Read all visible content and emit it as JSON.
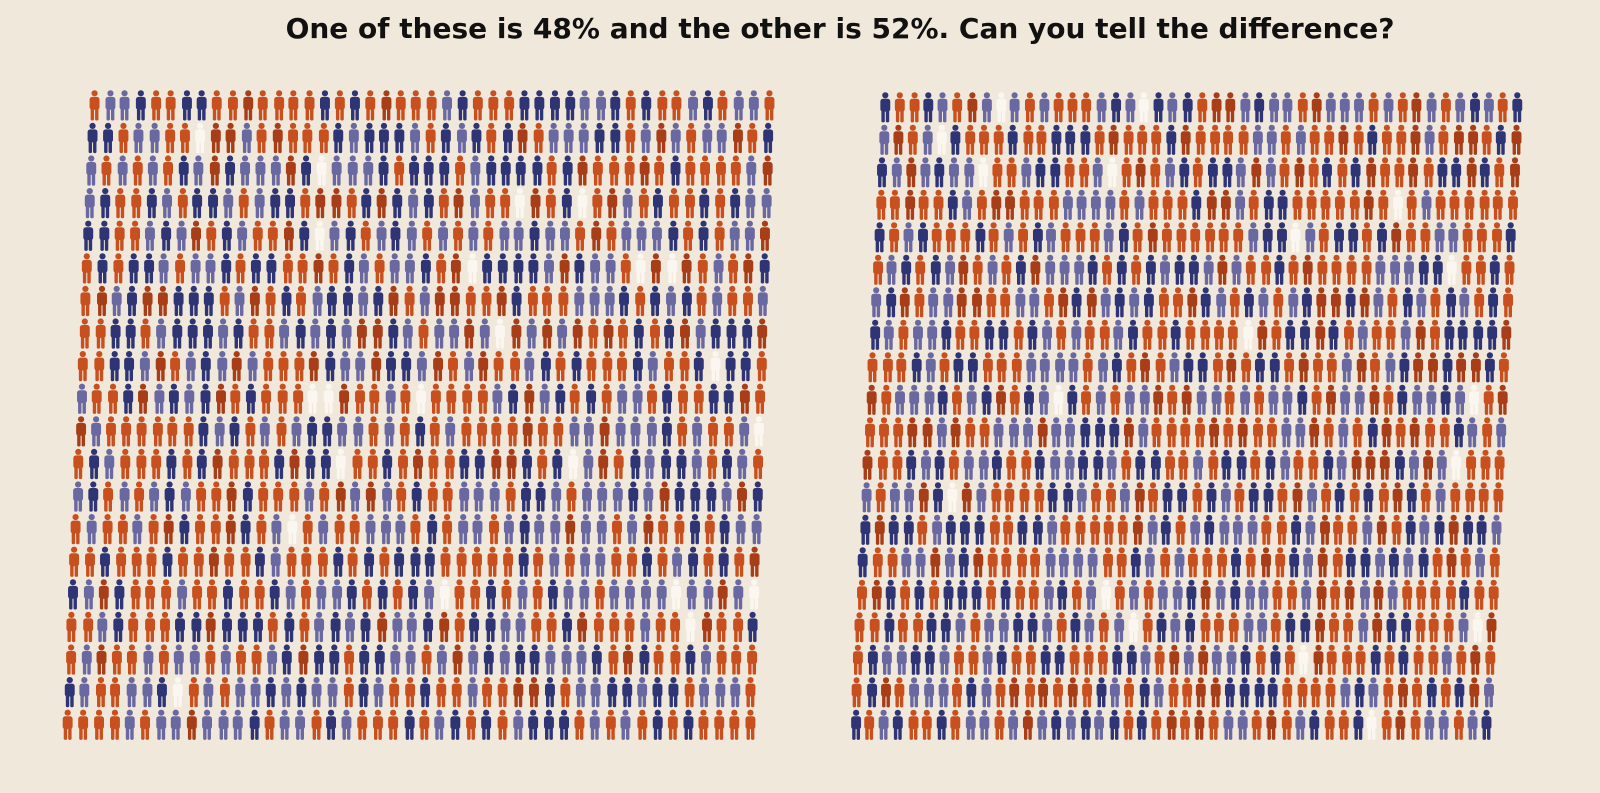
{
  "header": {
    "title": "One of these is 48% and the other is 52%. Can you tell the difference?"
  }
}
